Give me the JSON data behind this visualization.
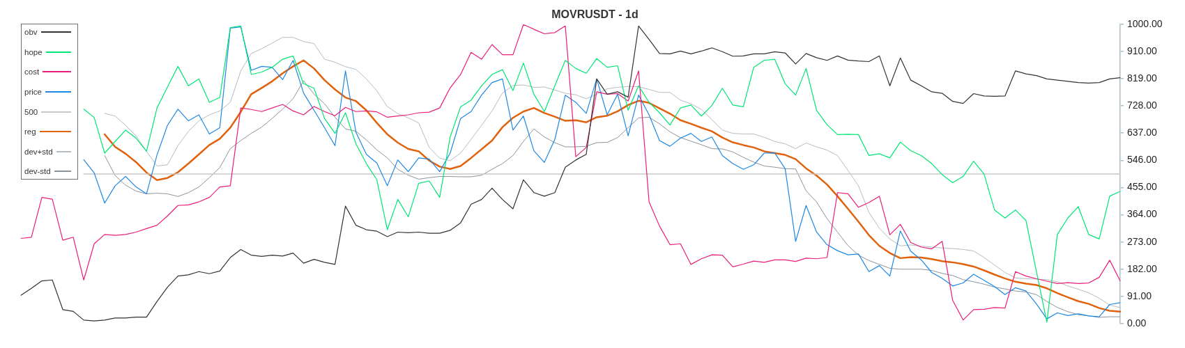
{
  "chart_data": {
    "type": "line",
    "title": "MOVRUSDT - 1d",
    "categories": [
      null,
      null,
      null,
      null,
      null,
      null,
      null,
      null,
      null,
      null,
      null,
      null,
      null,
      null,
      null,
      null,
      null,
      null,
      null,
      null,
      null,
      null,
      null,
      null,
      null,
      null,
      null,
      null,
      null,
      null,
      null,
      null,
      null,
      null,
      null,
      null,
      null,
      null,
      null,
      null,
      null,
      null,
      null,
      null,
      null,
      null,
      null,
      null,
      null,
      null,
      null,
      null,
      null,
      null,
      null,
      null,
      null,
      null,
      null,
      null,
      null,
      null,
      null,
      null,
      null,
      null,
      null,
      null,
      null,
      null,
      null,
      null,
      null,
      null,
      null,
      null,
      null,
      null,
      null,
      null,
      null,
      null,
      null,
      null,
      null,
      null,
      null,
      null,
      null,
      null,
      null,
      null,
      null,
      null,
      null,
      null,
      null,
      null,
      null,
      null,
      null,
      null,
      null,
      null,
      null,
      null
    ],
    "series": [
      {
        "name": "obv",
        "color": "#333333",
        "values": [
          95,
          118,
          143,
          146,
          47,
          41,
          12,
          9,
          12,
          19,
          19,
          22,
          22,
          74,
          122,
          159,
          163,
          174,
          167,
          176,
          221,
          248,
          229,
          225,
          229,
          226,
          236,
          202,
          215,
          205,
          198,
          393,
          329,
          314,
          309,
          291,
          306,
          304,
          306,
          302,
          302,
          312,
          337,
          399,
          415,
          453,
          415,
          384,
          481,
          438,
          426,
          438,
          523,
          547,
          566,
          818,
          767,
          775,
          757,
          995,
          950,
          903,
          902,
          911,
          902,
          911,
          922,
          909,
          894,
          895,
          902,
          902,
          909,
          905,
          868,
          903,
          889,
          880,
          895,
          881,
          878,
          876,
          895,
          795,
          888,
          814,
          795,
          775,
          770,
          743,
          736,
          769,
          761,
          760,
          761,
          845,
          835,
          829,
          818,
          814,
          810,
          806,
          804,
          806,
          818,
          822
        ]
      },
      {
        "name": "hope",
        "color": "#00e676",
        "values": [
          null,
          null,
          null,
          null,
          null,
          null,
          717,
          689,
          570,
          609,
          647,
          620,
          576,
          721,
          791,
          860,
          795,
          818,
          740,
          756,
          990,
          995,
          833,
          841,
          857,
          884,
          895,
          802,
          787,
          686,
          636,
          705,
          601,
          535,
          481,
          314,
          415,
          357,
          469,
          477,
          422,
          624,
          725,
          747,
          795,
          833,
          849,
          779,
          871,
          767,
          709,
          795,
          880,
          853,
          837,
          886,
          857,
          862,
          713,
          795,
          740,
          705,
          664,
          721,
          731,
          694,
          729,
          787,
          731,
          725,
          857,
          880,
          884,
          802,
          764,
          853,
          713,
          665,
          632,
          633,
          632,
          562,
          568,
          554,
          607,
          578,
          562,
          535,
          498,
          471,
          492,
          543,
          500,
          380,
          353,
          380,
          345,
          174,
          5,
          298,
          353,
          391,
          298,
          283,
          426,
          442
        ]
      },
      {
        "name": "cost",
        "color": "#e91e7a",
        "values": [
          285,
          289,
          422,
          416,
          279,
          289,
          146,
          267,
          298,
          295,
          298,
          306,
          318,
          329,
          360,
          395,
          397,
          407,
          422,
          457,
          461,
          721,
          716,
          709,
          721,
          733,
          711,
          698,
          726,
          709,
          695,
          723,
          709,
          711,
          708,
          690,
          694,
          698,
          705,
          707,
          721,
          788,
          833,
          907,
          884,
          933,
          899,
          899,
          1000,
          984,
          969,
          973,
          995,
          558,
          589,
          775,
          767,
          769,
          744,
          845,
          407,
          326,
          264,
          267,
          198,
          217,
          230,
          229,
          190,
          199,
          209,
          205,
          213,
          213,
          208,
          219,
          217,
          221,
          438,
          434,
          389,
          405,
          426,
          297,
          332,
          271,
          256,
          250,
          275,
          78,
          12,
          47,
          48,
          54,
          52,
          174,
          159,
          150,
          142,
          134,
          137,
          134,
          136,
          155,
          212,
          143
        ]
      },
      {
        "name": "price",
        "color": "#1e88e5",
        "values": [
          null,
          null,
          null,
          null,
          null,
          null,
          548,
          504,
          403,
          461,
          492,
          457,
          434,
          564,
          663,
          717,
          678,
          698,
          634,
          655,
          988,
          992,
          847,
          860,
          857,
          816,
          880,
          771,
          713,
          655,
          595,
          845,
          640,
          566,
          537,
          461,
          547,
          508,
          554,
          550,
          508,
          570,
          686,
          709,
          764,
          806,
          818,
          647,
          694,
          578,
          539,
          616,
          764,
          740,
          703,
          818,
          698,
          767,
          628,
          764,
          698,
          612,
          593,
          620,
          636,
          609,
          624,
          562,
          535,
          516,
          531,
          570,
          571,
          518,
          275,
          395,
          306,
          264,
          244,
          230,
          233,
          174,
          194,
          159,
          310,
          242,
          213,
          171,
          151,
          126,
          136,
          165,
          145,
          124,
          97,
          120,
          109,
          66,
          16,
          36,
          27,
          33,
          26,
          23,
          64,
          70
        ]
      },
      {
        "name": "500",
        "color": "#c8c8c8",
        "values": [
          null,
          null,
          null,
          null,
          null,
          null,
          500,
          500,
          500,
          500,
          500,
          500,
          500,
          500,
          500,
          500,
          500,
          500,
          500,
          500,
          500,
          500,
          500,
          500,
          500,
          500,
          500,
          500,
          500,
          500,
          500,
          500,
          500,
          500,
          500,
          500,
          500,
          500,
          500,
          500,
          500,
          500,
          500,
          500,
          500,
          500,
          500,
          500,
          500,
          500,
          500,
          500,
          500,
          500,
          500,
          500,
          500,
          500,
          500,
          500,
          500,
          500,
          500,
          500,
          500,
          500,
          500,
          500,
          500,
          500,
          500,
          500,
          500,
          500,
          500,
          500,
          500,
          500,
          500,
          500,
          500,
          500,
          500,
          500,
          500,
          500,
          500,
          500,
          500,
          500,
          500,
          500,
          500,
          500,
          500,
          500,
          500,
          500,
          500,
          500,
          500,
          500,
          500,
          500,
          500,
          500
        ]
      },
      {
        "name": "reg",
        "color": "#e0620d",
        "values": [
          null,
          null,
          null,
          null,
          null,
          null,
          null,
          null,
          633,
          591,
          568,
          540,
          505,
          480,
          487,
          506,
          535,
          566,
          597,
          618,
          655,
          708,
          767,
          788,
          810,
          837,
          860,
          880,
          853,
          814,
          783,
          756,
          744,
          713,
          671,
          633,
          605,
          584,
          576,
          545,
          525,
          517,
          527,
          554,
          583,
          612,
          657,
          688,
          709,
          721,
          704,
          692,
          678,
          680,
          673,
          690,
          695,
          710,
          731,
          745,
          738,
          720,
          702,
          680,
          668,
          655,
          643,
          622,
          606,
          597,
          589,
          576,
          570,
          564,
          550,
          519,
          495,
          465,
          426,
          384,
          341,
          296,
          260,
          236,
          219,
          222,
          221,
          216,
          209,
          205,
          199,
          191,
          178,
          164,
          151,
          140,
          134,
          129,
          118,
          102,
          88,
          75,
          66,
          52,
          43,
          40
        ]
      },
      {
        "name": "dev+std",
        "color": "#b4bcc2",
        "values": [
          null,
          null,
          null,
          null,
          null,
          null,
          null,
          null,
          703,
          694,
          663,
          628,
          576,
          527,
          531,
          595,
          643,
          678,
          698,
          711,
          740,
          845,
          903,
          919,
          938,
          957,
          957,
          943,
          936,
          884,
          874,
          859,
          850,
          818,
          778,
          726,
          702,
          688,
          671,
          589,
          553,
          545,
          570,
          616,
          663,
          711,
          771,
          796,
          798,
          790,
          791,
          781,
          770,
          765,
          752,
          767,
          785,
          790,
          793,
          792,
          783,
          773,
          773,
          747,
          735,
          716,
          682,
          647,
          636,
          634,
          634,
          623,
          609,
          601,
          585,
          604,
          591,
          580,
          562,
          512,
          461,
          372,
          319,
          283,
          260,
          263,
          259,
          256,
          253,
          251,
          248,
          243,
          221,
          196,
          171,
          153,
          150,
          149,
          147,
          140,
          126,
          115,
          103,
          85,
          62,
          54
        ]
      },
      {
        "name": "dev-std",
        "color": "#8a949c",
        "values": [
          null,
          null,
          null,
          null,
          null,
          null,
          null,
          null,
          562,
          495,
          463,
          443,
          434,
          436,
          434,
          425,
          438,
          457,
          488,
          522,
          585,
          612,
          636,
          657,
          686,
          717,
          752,
          812,
          767,
          735,
          690,
          651,
          643,
          614,
          581,
          554,
          516,
          496,
          483,
          488,
          492,
          492,
          491,
          491,
          496,
          516,
          535,
          562,
          609,
          651,
          624,
          605,
          591,
          591,
          593,
          605,
          606,
          622,
          655,
          688,
          690,
          668,
          641,
          622,
          610,
          598,
          585,
          584,
          574,
          556,
          540,
          527,
          523,
          518,
          517,
          444,
          407,
          351,
          306,
          261,
          229,
          211,
          198,
          185,
          182,
          182,
          182,
          178,
          168,
          161,
          147,
          140,
          132,
          122,
          116,
          109,
          106,
          97,
          74,
          54,
          40,
          30,
          26,
          21,
          23,
          23
        ]
      }
    ],
    "ylim": [
      0,
      1000
    ],
    "yticks": [
      {
        "value": 0,
        "label": "0.00"
      },
      {
        "value": 91,
        "label": "91.00"
      },
      {
        "value": 182,
        "label": "182.00"
      },
      {
        "value": 273,
        "label": "273.00"
      },
      {
        "value": 364,
        "label": "364.00"
      },
      {
        "value": 455,
        "label": "455.00"
      },
      {
        "value": 546,
        "label": "546.00"
      },
      {
        "value": 637,
        "label": "637.00"
      },
      {
        "value": 728,
        "label": "728.00"
      },
      {
        "value": 819,
        "label": "819.00"
      },
      {
        "value": 910,
        "label": "910.00"
      },
      {
        "value": 1000,
        "label": "1000.00"
      }
    ],
    "legend": "top left",
    "tick_labels": "y"
  }
}
